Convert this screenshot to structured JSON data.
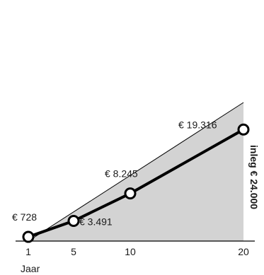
{
  "chart_data": {
    "type": "line",
    "x": [
      1,
      5,
      10,
      20
    ],
    "tick_labels": [
      "1",
      "5",
      "10",
      "20"
    ],
    "xlabel": "Jaar",
    "series": [
      {
        "values": [
          728,
          3491,
          8245,
          19316
        ],
        "labels": [
          "€ 728",
          "€ 3.491",
          "€ 8.245",
          "€ 19.316"
        ]
      }
    ],
    "invested": {
      "start": 0,
      "end": 24000,
      "label": "inleg € 24.000"
    },
    "grid": false,
    "colors": {
      "line": "#000000",
      "area": "#d3d3d3",
      "marker_fill": "#ffffff"
    }
  }
}
